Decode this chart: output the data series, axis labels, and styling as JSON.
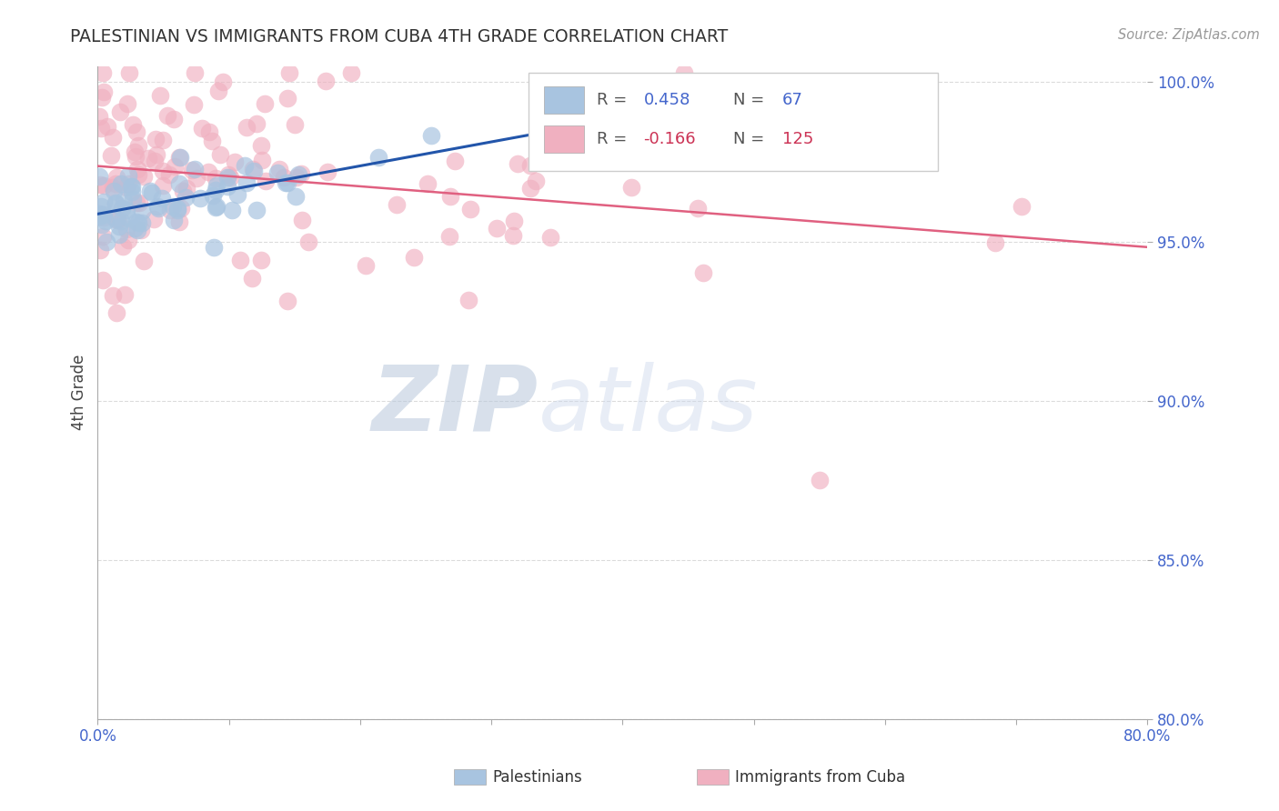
{
  "title": "PALESTINIAN VS IMMIGRANTS FROM CUBA 4TH GRADE CORRELATION CHART",
  "source": "Source: ZipAtlas.com",
  "ylabel": "4th Grade",
  "blue_R": 0.458,
  "blue_N": 67,
  "pink_R": -0.166,
  "pink_N": 125,
  "blue_color": "#a8c4e0",
  "pink_color": "#f0b0c0",
  "blue_line_color": "#2255aa",
  "pink_line_color": "#e06080",
  "legend_label_blue": "Palestinians",
  "legend_label_pink": "Immigrants from Cuba",
  "watermark_zip": "ZIP",
  "watermark_atlas": "atlas",
  "watermark_color_zip": "#b0bcd8",
  "watermark_color_atlas": "#c8d4e8",
  "background_color": "#ffffff",
  "grid_color": "#cccccc",
  "axis_label_color": "#4466cc",
  "title_color": "#333333",
  "xlim": [
    0.0,
    0.8
  ],
  "ylim": [
    0.8,
    1.005
  ],
  "yticks": [
    0.8,
    0.85,
    0.9,
    0.95,
    1.0
  ],
  "ytick_labels": [
    "80.0%",
    "85.0%",
    "90.0%",
    "95.0%",
    "100.0%"
  ],
  "xtick_left": "0.0%",
  "xtick_right": "80.0%"
}
